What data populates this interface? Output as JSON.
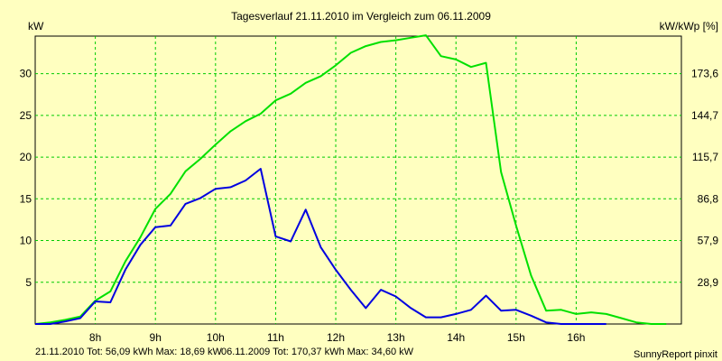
{
  "chart_data": {
    "type": "line",
    "title": "Tagesverlauf 21.11.2010 im Vergleich zum 06.11.2009",
    "ylabel_left": "kW",
    "ylabel_right": "kW/kWp [%]",
    "xlim": [
      7.0,
      17.75
    ],
    "ylim": [
      0,
      34.5
    ],
    "x_ticks": [
      {
        "x": 8,
        "label": "8h"
      },
      {
        "x": 9,
        "label": "9h"
      },
      {
        "x": 10,
        "label": "10h"
      },
      {
        "x": 11,
        "label": "11h"
      },
      {
        "x": 12,
        "label": "12h"
      },
      {
        "x": 13,
        "label": "13h"
      },
      {
        "x": 14,
        "label": "14h"
      },
      {
        "x": 15,
        "label": "15h"
      },
      {
        "x": 16,
        "label": "16h"
      }
    ],
    "y_ticks_left": [
      {
        "y": 5,
        "label": "5"
      },
      {
        "y": 10,
        "label": "10"
      },
      {
        "y": 15,
        "label": "15"
      },
      {
        "y": 20,
        "label": "20"
      },
      {
        "y": 25,
        "label": "25"
      },
      {
        "y": 30,
        "label": "30"
      }
    ],
    "y_ticks_right": [
      {
        "y": 5,
        "label": "28,9"
      },
      {
        "y": 10,
        "label": "57,9"
      },
      {
        "y": 15,
        "label": "86,8"
      },
      {
        "y": 20,
        "label": "115,7"
      },
      {
        "y": 25,
        "label": "144,7"
      },
      {
        "y": 30,
        "label": "173,6"
      }
    ],
    "grid": true,
    "series": [
      {
        "color": "#00e000",
        "points": [
          [
            7.0,
            0.0
          ],
          [
            7.25,
            0.2
          ],
          [
            7.5,
            0.5
          ],
          [
            7.75,
            0.9
          ],
          [
            8.0,
            2.8
          ],
          [
            8.25,
            3.9
          ],
          [
            8.5,
            7.5
          ],
          [
            8.75,
            10.4
          ],
          [
            9.0,
            13.8
          ],
          [
            9.25,
            15.6
          ],
          [
            9.5,
            18.3
          ],
          [
            9.75,
            19.8
          ],
          [
            10.0,
            21.5
          ],
          [
            10.25,
            23.1
          ],
          [
            10.5,
            24.3
          ],
          [
            10.75,
            25.2
          ],
          [
            11.0,
            26.8
          ],
          [
            11.25,
            27.6
          ],
          [
            11.5,
            28.9
          ],
          [
            11.75,
            29.7
          ],
          [
            12.0,
            31.0
          ],
          [
            12.25,
            32.5
          ],
          [
            12.5,
            33.3
          ],
          [
            12.75,
            33.8
          ],
          [
            13.0,
            34.0
          ],
          [
            13.25,
            34.3
          ],
          [
            13.5,
            34.6
          ],
          [
            13.75,
            32.1
          ],
          [
            14.0,
            31.7
          ],
          [
            14.25,
            30.8
          ],
          [
            14.5,
            31.3
          ],
          [
            14.75,
            18.2
          ],
          [
            15.0,
            11.8
          ],
          [
            15.25,
            5.8
          ],
          [
            15.5,
            1.6
          ],
          [
            15.75,
            1.7
          ],
          [
            16.0,
            1.2
          ],
          [
            16.25,
            1.4
          ],
          [
            16.5,
            1.2
          ],
          [
            16.75,
            0.7
          ],
          [
            17.0,
            0.2
          ],
          [
            17.25,
            0.0
          ],
          [
            17.5,
            0.0
          ]
        ]
      },
      {
        "color": "#0000e0",
        "points": [
          [
            7.0,
            0.0
          ],
          [
            7.25,
            0.0
          ],
          [
            7.5,
            0.3
          ],
          [
            7.75,
            0.7
          ],
          [
            8.0,
            2.7
          ],
          [
            8.25,
            2.6
          ],
          [
            8.5,
            6.5
          ],
          [
            8.75,
            9.5
          ],
          [
            9.0,
            11.6
          ],
          [
            9.25,
            11.8
          ],
          [
            9.5,
            14.4
          ],
          [
            9.75,
            15.1
          ],
          [
            10.0,
            16.2
          ],
          [
            10.25,
            16.4
          ],
          [
            10.5,
            17.2
          ],
          [
            10.75,
            18.6
          ],
          [
            11.0,
            10.5
          ],
          [
            11.25,
            9.9
          ],
          [
            11.5,
            13.7
          ],
          [
            11.75,
            9.2
          ],
          [
            12.0,
            6.5
          ],
          [
            12.25,
            4.1
          ],
          [
            12.5,
            1.9
          ],
          [
            12.75,
            4.1
          ],
          [
            13.0,
            3.3
          ],
          [
            13.25,
            1.9
          ],
          [
            13.5,
            0.8
          ],
          [
            13.75,
            0.8
          ],
          [
            14.0,
            1.2
          ],
          [
            14.25,
            1.7
          ],
          [
            14.5,
            3.4
          ],
          [
            14.75,
            1.6
          ],
          [
            15.0,
            1.7
          ],
          [
            15.25,
            1.0
          ],
          [
            15.5,
            0.2
          ],
          [
            15.75,
            0.0
          ],
          [
            16.0,
            0.0
          ],
          [
            16.25,
            0.0
          ],
          [
            16.5,
            0.0
          ]
        ]
      }
    ]
  },
  "footer": {
    "series_2010_text": "21.11.2010 Tot: 56,09 kWh Max: 18,69 kW",
    "series_2010_color": "#0000e0",
    "series_2009_text": "06.11.2009 Tot: 170,37 kWh Max: 34,60 kW",
    "series_2009_color": "#00e000",
    "credit": "SunnyReport pinxit"
  },
  "colors": {
    "background": "#ffffc0",
    "grid": "#00cc00"
  }
}
